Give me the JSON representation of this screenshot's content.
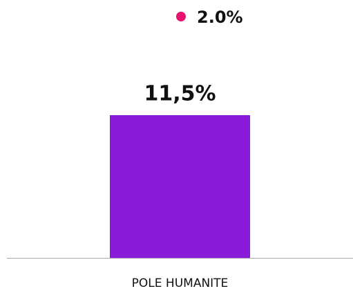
{
  "chart_data": {
    "type": "bar",
    "categories": [
      "POLE HUMANITE"
    ],
    "values": [
      11.5
    ],
    "value_labels": [
      "11,5%"
    ],
    "color": "#8a1bd8",
    "ylim": [
      0,
      20
    ],
    "annotation": {
      "text": "2.0%",
      "color": "#e8116b"
    }
  }
}
